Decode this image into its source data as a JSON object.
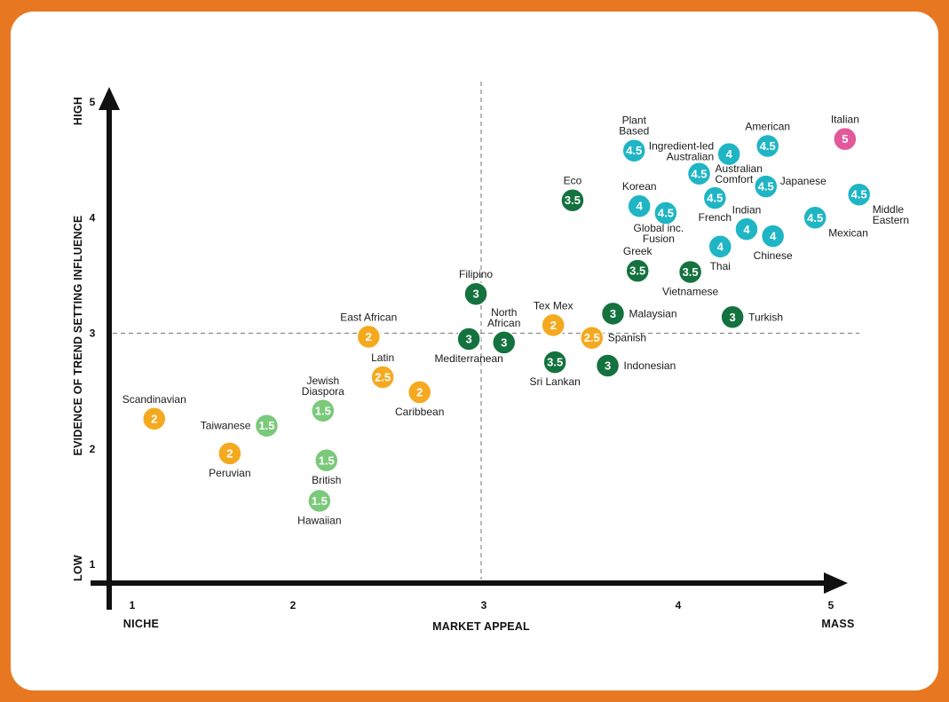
{
  "colors": {
    "frame": "#E87722",
    "score_5": "#E2589A",
    "score_4_5": "#1FB5C4",
    "score_3_5": "#14723E",
    "score_2_5": "#F5A91F",
    "score_1_5": "#7BC97A",
    "axis": "#111111",
    "guide": "#8a8a8a"
  },
  "chart_data": {
    "type": "scatter",
    "title": "",
    "xlabel": "MARKET APPEAL",
    "ylabel": "EVIDENCE OF TREND SETTING INFLUENCE",
    "xlim": [
      0.9,
      5.2
    ],
    "ylim": [
      0.85,
      5.2
    ],
    "x_ticks": [
      "1",
      "2",
      "3",
      "4",
      "5"
    ],
    "y_ticks": [
      "1",
      "2",
      "3",
      "4",
      "5"
    ],
    "x_end_labels": {
      "low": "NICHE",
      "high": "MASS"
    },
    "y_end_labels": {
      "low": "LOW",
      "high": "HIGH"
    },
    "guide_lines": {
      "x": 3,
      "y": 3,
      "style": "dashed"
    },
    "grid": false,
    "points": [
      {
        "name": "Italian",
        "x": 5.07,
        "y": 4.68,
        "score": "5",
        "label_pos": "top"
      },
      {
        "name": "American",
        "x": 4.63,
        "y": 4.62,
        "score": "4.5",
        "label_pos": "top"
      },
      {
        "name": "Plant\nBased",
        "x": 3.87,
        "y": 4.58,
        "score": "4.5",
        "label_pos": "top"
      },
      {
        "name": "Ingredient-led\nAustralian",
        "x": 4.41,
        "y": 4.55,
        "score": "4",
        "label_pos": "left-up"
      },
      {
        "name": "Australian\nComfort",
        "x": 4.24,
        "y": 4.38,
        "score": "4.5",
        "label_pos": "right"
      },
      {
        "name": "Japanese",
        "x": 4.62,
        "y": 4.27,
        "score": "4.5",
        "label_pos": "right-up"
      },
      {
        "name": "Eco",
        "x": 3.52,
        "y": 4.15,
        "score": "3.5",
        "label_pos": "top"
      },
      {
        "name": "Middle\nEastern",
        "x": 5.15,
        "y": 4.2,
        "score": "4.5",
        "label_pos": "below-right"
      },
      {
        "name": "Korean",
        "x": 3.9,
        "y": 4.1,
        "score": "4",
        "label_pos": "top"
      },
      {
        "name": "French",
        "x": 4.33,
        "y": 4.17,
        "score": "4.5",
        "label_pos": "below"
      },
      {
        "name": "Global inc.\nFusion",
        "x": 4.05,
        "y": 4.04,
        "score": "4.5",
        "label_pos": "below-left"
      },
      {
        "name": "Indian",
        "x": 4.51,
        "y": 3.9,
        "score": "4",
        "label_pos": "top"
      },
      {
        "name": "Mexican",
        "x": 4.9,
        "y": 4.0,
        "score": "4.5",
        "label_pos": "below-right"
      },
      {
        "name": "Chinese",
        "x": 4.66,
        "y": 3.84,
        "score": "4",
        "label_pos": "below"
      },
      {
        "name": "Thai",
        "x": 4.36,
        "y": 3.75,
        "score": "4",
        "label_pos": "below"
      },
      {
        "name": "Greek",
        "x": 3.89,
        "y": 3.54,
        "score": "3.5",
        "label_pos": "top"
      },
      {
        "name": "Vietnamese",
        "x": 4.19,
        "y": 3.53,
        "score": "3.5",
        "label_pos": "below"
      },
      {
        "name": "Filipino",
        "x": 2.97,
        "y": 3.34,
        "score": "3",
        "label_pos": "top"
      },
      {
        "name": "Malaysian",
        "x": 3.75,
        "y": 3.17,
        "score": "3",
        "label_pos": "right"
      },
      {
        "name": "Turkish",
        "x": 4.43,
        "y": 3.14,
        "score": "3",
        "label_pos": "right"
      },
      {
        "name": "Tex Mex",
        "x": 3.41,
        "y": 3.07,
        "score": "2",
        "label_pos": "top"
      },
      {
        "name": "East African",
        "x": 2.36,
        "y": 2.97,
        "score": "2",
        "label_pos": "top"
      },
      {
        "name": "Mediterranean",
        "x": 2.93,
        "y": 2.95,
        "score": "3",
        "label_pos": "below"
      },
      {
        "name": "North\nAfrican",
        "x": 3.13,
        "y": 2.92,
        "score": "3",
        "label_pos": "top"
      },
      {
        "name": "Spanish",
        "x": 3.63,
        "y": 2.96,
        "score": "2.5",
        "label_pos": "right"
      },
      {
        "name": "Sri Lankan",
        "x": 3.42,
        "y": 2.75,
        "score": "3.5",
        "label_pos": "below"
      },
      {
        "name": "Indonesian",
        "x": 3.72,
        "y": 2.72,
        "score": "3",
        "label_pos": "right"
      },
      {
        "name": "Latin",
        "x": 2.44,
        "y": 2.62,
        "score": "2.5",
        "label_pos": "top"
      },
      {
        "name": "Caribbean",
        "x": 2.65,
        "y": 2.49,
        "score": "2",
        "label_pos": "below"
      },
      {
        "name": "Jewish\nDiaspora",
        "x": 2.1,
        "y": 2.33,
        "score": "1.5",
        "label_pos": "top"
      },
      {
        "name": "Scandinavian",
        "x": 1.14,
        "y": 2.26,
        "score": "2",
        "label_pos": "top"
      },
      {
        "name": "Taiwanese",
        "x": 1.78,
        "y": 2.2,
        "score": "1.5",
        "label_pos": "left"
      },
      {
        "name": "Peruvian",
        "x": 1.57,
        "y": 1.96,
        "score": "2",
        "label_pos": "below"
      },
      {
        "name": "British",
        "x": 2.12,
        "y": 1.9,
        "score": "1.5",
        "label_pos": "below"
      },
      {
        "name": "Hawaiian",
        "x": 2.08,
        "y": 1.55,
        "score": "1.5",
        "label_pos": "below"
      }
    ]
  }
}
